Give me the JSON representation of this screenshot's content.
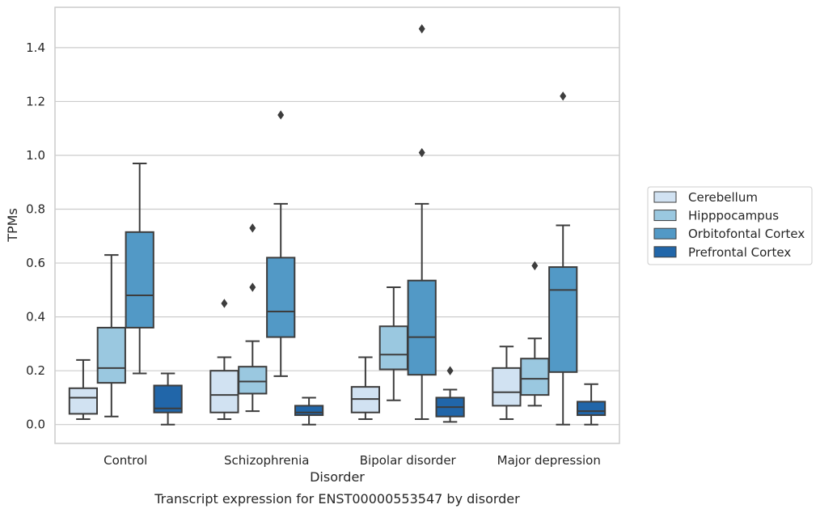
{
  "chart_data": {
    "type": "box",
    "title": "",
    "xlabel": "Disorder",
    "ylabel": "TPMs",
    "caption": "Transcript expression for ENST00000553547 by disorder",
    "ylim": [
      -0.07,
      1.55
    ],
    "yticks": [
      0.0,
      0.2,
      0.4,
      0.6,
      0.8,
      1.0,
      1.2,
      1.4
    ],
    "ytick_labels": [
      "0.0",
      "0.2",
      "0.4",
      "0.6",
      "0.8",
      "1.0",
      "1.2",
      "1.4"
    ],
    "grid": "horizontal",
    "legend_position": "right",
    "categories": [
      "Control",
      "Schizophrenia",
      "Bipolar disorder",
      "Major depression"
    ],
    "series": [
      {
        "name": "Cerebellum",
        "color": "#d1e2f2",
        "boxes": [
          {
            "whislo": 0.02,
            "q1": 0.04,
            "med": 0.1,
            "q3": 0.135,
            "whishi": 0.24,
            "fliers": []
          },
          {
            "whislo": 0.02,
            "q1": 0.045,
            "med": 0.11,
            "q3": 0.2,
            "whishi": 0.25,
            "fliers": [
              0.45
            ]
          },
          {
            "whislo": 0.02,
            "q1": 0.045,
            "med": 0.095,
            "q3": 0.14,
            "whishi": 0.25,
            "fliers": []
          },
          {
            "whislo": 0.02,
            "q1": 0.07,
            "med": 0.12,
            "q3": 0.21,
            "whishi": 0.29,
            "fliers": []
          }
        ]
      },
      {
        "name": "Hipppocampus",
        "color": "#9ac8e0",
        "boxes": [
          {
            "whislo": 0.03,
            "q1": 0.155,
            "med": 0.21,
            "q3": 0.36,
            "whishi": 0.63,
            "fliers": []
          },
          {
            "whislo": 0.05,
            "q1": 0.115,
            "med": 0.16,
            "q3": 0.215,
            "whishi": 0.31,
            "fliers": [
              0.51,
              0.73
            ]
          },
          {
            "whislo": 0.09,
            "q1": 0.205,
            "med": 0.26,
            "q3": 0.365,
            "whishi": 0.51,
            "fliers": []
          },
          {
            "whislo": 0.07,
            "q1": 0.11,
            "med": 0.17,
            "q3": 0.245,
            "whishi": 0.32,
            "fliers": [
              0.59
            ]
          }
        ]
      },
      {
        "name": "Orbitofontal Cortex",
        "color": "#5299c6",
        "boxes": [
          {
            "whislo": 0.19,
            "q1": 0.36,
            "med": 0.48,
            "q3": 0.715,
            "whishi": 0.97,
            "fliers": []
          },
          {
            "whislo": 0.18,
            "q1": 0.325,
            "med": 0.42,
            "q3": 0.62,
            "whishi": 0.82,
            "fliers": [
              1.15
            ]
          },
          {
            "whislo": 0.02,
            "q1": 0.185,
            "med": 0.325,
            "q3": 0.535,
            "whishi": 0.82,
            "fliers": [
              1.01,
              1.47
            ]
          },
          {
            "whislo": 0.0,
            "q1": 0.195,
            "med": 0.5,
            "q3": 0.585,
            "whishi": 0.74,
            "fliers": [
              1.22
            ]
          }
        ]
      },
      {
        "name": "Prefrontal Cortex",
        "color": "#2166a9",
        "boxes": [
          {
            "whislo": 0.0,
            "q1": 0.045,
            "med": 0.06,
            "q3": 0.145,
            "whishi": 0.19,
            "fliers": []
          },
          {
            "whislo": 0.0,
            "q1": 0.035,
            "med": 0.045,
            "q3": 0.07,
            "whishi": 0.1,
            "fliers": []
          },
          {
            "whislo": 0.01,
            "q1": 0.03,
            "med": 0.065,
            "q3": 0.1,
            "whishi": 0.13,
            "fliers": [
              0.2
            ]
          },
          {
            "whislo": 0.0,
            "q1": 0.035,
            "med": 0.05,
            "q3": 0.085,
            "whishi": 0.15,
            "fliers": []
          }
        ]
      }
    ]
  }
}
